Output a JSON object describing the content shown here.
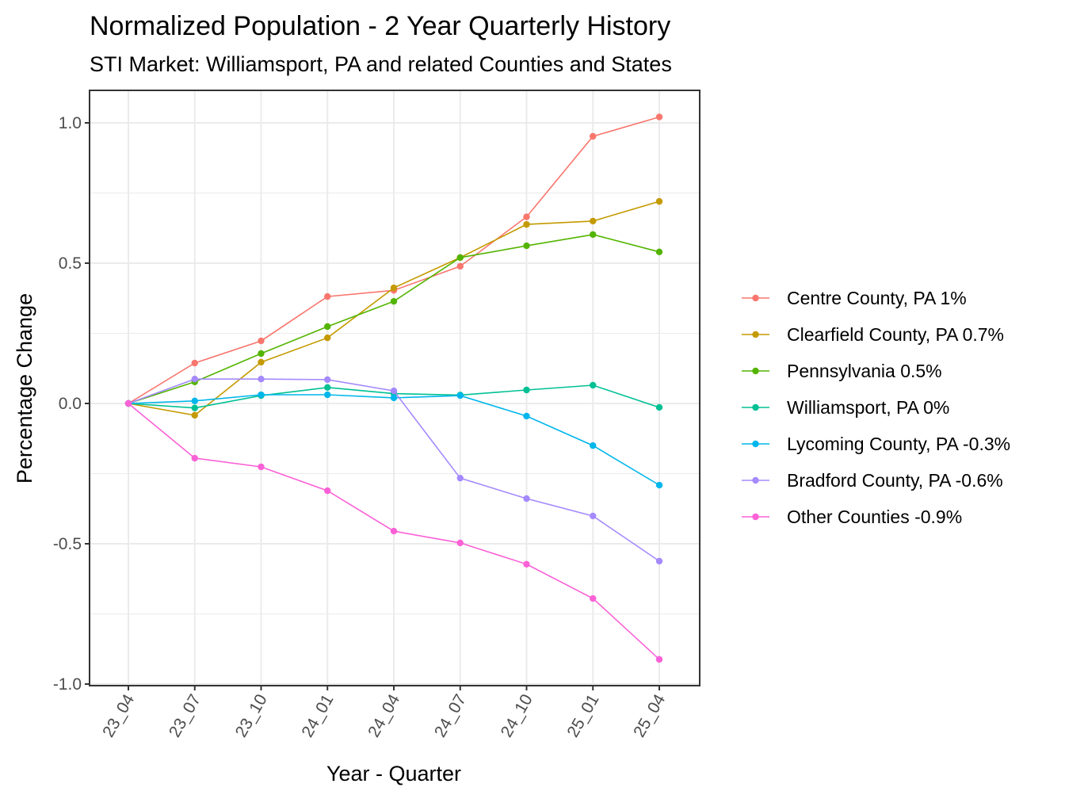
{
  "chart_data": {
    "type": "line",
    "title": "Normalized Population - 2 Year Quarterly History",
    "subtitle": "STI Market: Williamsport, PA and related Counties and States",
    "xlabel": "Year - Quarter",
    "ylabel": "Percentage Change",
    "x": [
      "23_04",
      "23_07",
      "23_10",
      "24_01",
      "24_04",
      "24_07",
      "24_10",
      "25_01",
      "25_04"
    ],
    "ylim": [
      -1.0,
      1.1
    ],
    "yticks": [
      1.0,
      0.5,
      0.0,
      -0.5,
      -1.0
    ],
    "ytick_labels": [
      "1.0",
      "0.5",
      "0.0",
      "-0.5",
      "-1.0"
    ],
    "grid": true,
    "legend_position": "right",
    "series": [
      {
        "name": "Centre County, PA 1%",
        "color": "#F8766D",
        "values": [
          0.0,
          0.144,
          0.223,
          0.381,
          0.403,
          0.489,
          0.665,
          0.952,
          1.021
        ]
      },
      {
        "name": "Clearfield County, PA 0.7%",
        "color": "#C49A00",
        "values": [
          0.0,
          -0.042,
          0.147,
          0.234,
          0.412,
          0.52,
          0.638,
          0.65,
          0.72
        ]
      },
      {
        "name": "Pennsylvania 0.5%",
        "color": "#53B400",
        "values": [
          0.0,
          0.077,
          0.178,
          0.274,
          0.364,
          0.52,
          0.562,
          0.602,
          0.54
        ]
      },
      {
        "name": "Williamsport, PA 0%",
        "color": "#00C094",
        "values": [
          0.0,
          -0.016,
          0.028,
          0.057,
          0.035,
          0.03,
          0.048,
          0.065,
          -0.014
        ]
      },
      {
        "name": "Lycoming County, PA -0.3%",
        "color": "#00B6EB",
        "values": [
          0.0,
          0.009,
          0.031,
          0.031,
          0.02,
          0.028,
          -0.045,
          -0.15,
          -0.291
        ]
      },
      {
        "name": "Bradford County, PA -0.6%",
        "color": "#A58AFF",
        "values": [
          0.0,
          0.087,
          0.087,
          0.085,
          0.045,
          -0.266,
          -0.339,
          -0.401,
          -0.562
        ]
      },
      {
        "name": "Other Counties -0.9%",
        "color": "#FB61D7",
        "values": [
          0.0,
          -0.195,
          -0.226,
          -0.311,
          -0.455,
          -0.497,
          -0.573,
          -0.695,
          -0.912
        ]
      }
    ]
  }
}
